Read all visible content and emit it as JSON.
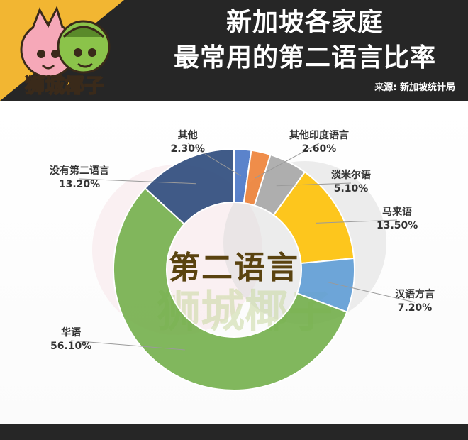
{
  "header": {
    "title_line1": "新加坡各家庭",
    "title_line2": "最常用的第二语言比率",
    "source": "来源: 新加坡统计局",
    "logo_text": "狮城椰子"
  },
  "center_label": "第二语言",
  "watermark": "狮城椰子",
  "chart_data": {
    "type": "pie",
    "donut": true,
    "categories": [
      "其他",
      "其他印度语言",
      "淡米尔语",
      "马来语",
      "汉语方言",
      "华语",
      "没有第二语言"
    ],
    "values": [
      2.3,
      2.6,
      5.1,
      13.5,
      7.2,
      56.1,
      13.2
    ],
    "value_labels": [
      "2.30%",
      "2.60%",
      "5.10%",
      "13.50%",
      "7.20%",
      "56.10%",
      "13.20%"
    ],
    "colors": [
      "#4472c4",
      "#ed7d31",
      "#a5a5a5",
      "#ffc000",
      "#5b9bd5",
      "#70ad47",
      "#264478"
    ],
    "legend": "none"
  }
}
